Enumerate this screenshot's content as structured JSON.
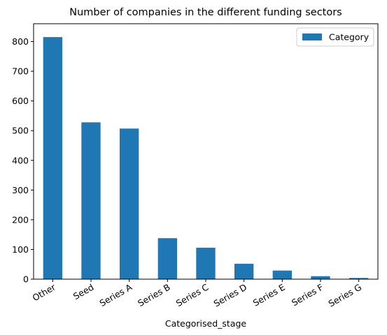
{
  "chart_data": {
    "type": "bar",
    "title": "Number of companies in the different funding sectors",
    "xlabel": "Categorised_stage",
    "ylabel": "",
    "categories": [
      "Other",
      "Seed",
      "Series A",
      "Series B",
      "Series C",
      "Series D",
      "Series E",
      "Series F",
      "Series G"
    ],
    "series": [
      {
        "name": "Category",
        "values": [
          815,
          528,
          507,
          138,
          106,
          52,
          29,
          10,
          4
        ],
        "color": "#1f77b4"
      }
    ],
    "ylim": [
      0,
      860
    ],
    "yticks": [
      0,
      100,
      200,
      300,
      400,
      500,
      600,
      700,
      800
    ],
    "ytick_labels": [
      "0",
      "100",
      "200",
      "300",
      "400",
      "500",
      "600",
      "700",
      "800"
    ],
    "legend_position": "top-right",
    "grid": false
  }
}
